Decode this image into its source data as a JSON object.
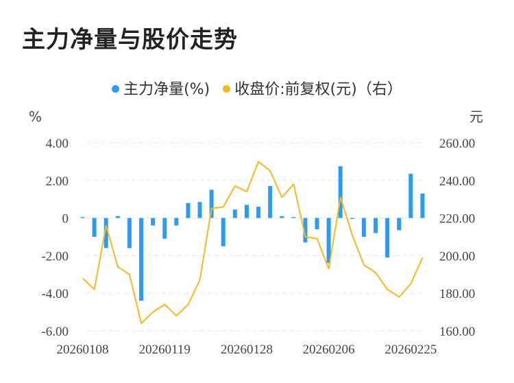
{
  "chart_data": {
    "type": "bar+line",
    "title": "主力净量与股价走势",
    "legend": [
      {
        "name": "主力净量(%)",
        "color": "#2f9bf0"
      },
      {
        "name": "收盘价:前复权(元)（右）",
        "color": "#f5b820"
      }
    ],
    "left_axis": {
      "unit": "%",
      "min": -6,
      "max": 4,
      "ticks": [
        "4.00",
        "2.00",
        "0",
        "-2.00",
        "-4.00",
        "-6.00"
      ],
      "tick_values": [
        4,
        2,
        0,
        -2,
        -4,
        -6
      ]
    },
    "right_axis": {
      "unit": "元",
      "min": 160,
      "max": 260,
      "ticks": [
        "260.00",
        "240.00",
        "220.00",
        "200.00",
        "180.00",
        "160.00"
      ],
      "tick_values": [
        260,
        240,
        220,
        200,
        180,
        160
      ]
    },
    "x_tick_labels": [
      {
        "label": "20260108",
        "index": 0
      },
      {
        "label": "20260119",
        "index": 7
      },
      {
        "label": "20260128",
        "index": 14
      },
      {
        "label": "20260206",
        "index": 21
      },
      {
        "label": "20260225",
        "index": 28
      }
    ],
    "series": [
      {
        "name": "主力净量(%)",
        "type": "bar",
        "values": [
          0.05,
          -1.0,
          -1.6,
          0.1,
          -1.6,
          -4.4,
          -0.4,
          -1.1,
          -0.4,
          0.8,
          0.85,
          1.5,
          -1.5,
          0.45,
          0.7,
          0.6,
          1.7,
          0.1,
          0.05,
          -1.3,
          -0.6,
          -2.4,
          2.75,
          -0.05,
          -1.0,
          -0.8,
          -2.1,
          -0.65,
          2.35,
          1.3
        ]
      },
      {
        "name": "收盘价:前复权(元)（右）",
        "type": "line",
        "values": [
          188,
          182,
          216,
          194,
          190,
          164,
          170,
          174,
          168,
          174,
          187,
          225,
          226,
          237,
          234,
          250,
          245,
          231,
          238,
          210,
          209,
          193,
          231,
          211,
          195,
          191,
          182,
          178,
          185,
          199
        ]
      }
    ]
  }
}
